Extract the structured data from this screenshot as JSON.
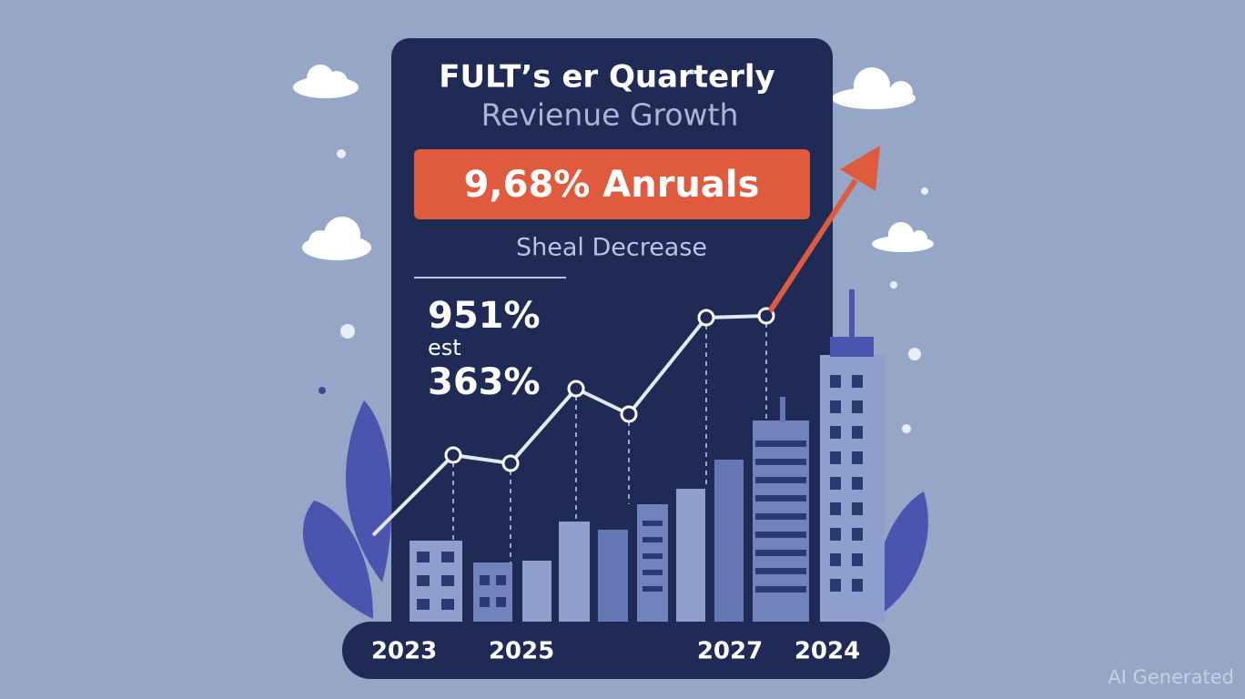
{
  "header": {
    "title_line1": "FULT’s er Quarterly",
    "title_line2": "Revienue Growth"
  },
  "banner": "9,68% Anruals",
  "subtitle": "Sheal Decrease",
  "stats": [
    "951%",
    "est",
    "363%"
  ],
  "years": [
    "2023",
    "2025",
    "2027",
    "2024"
  ],
  "watermark": "AI Generated"
}
